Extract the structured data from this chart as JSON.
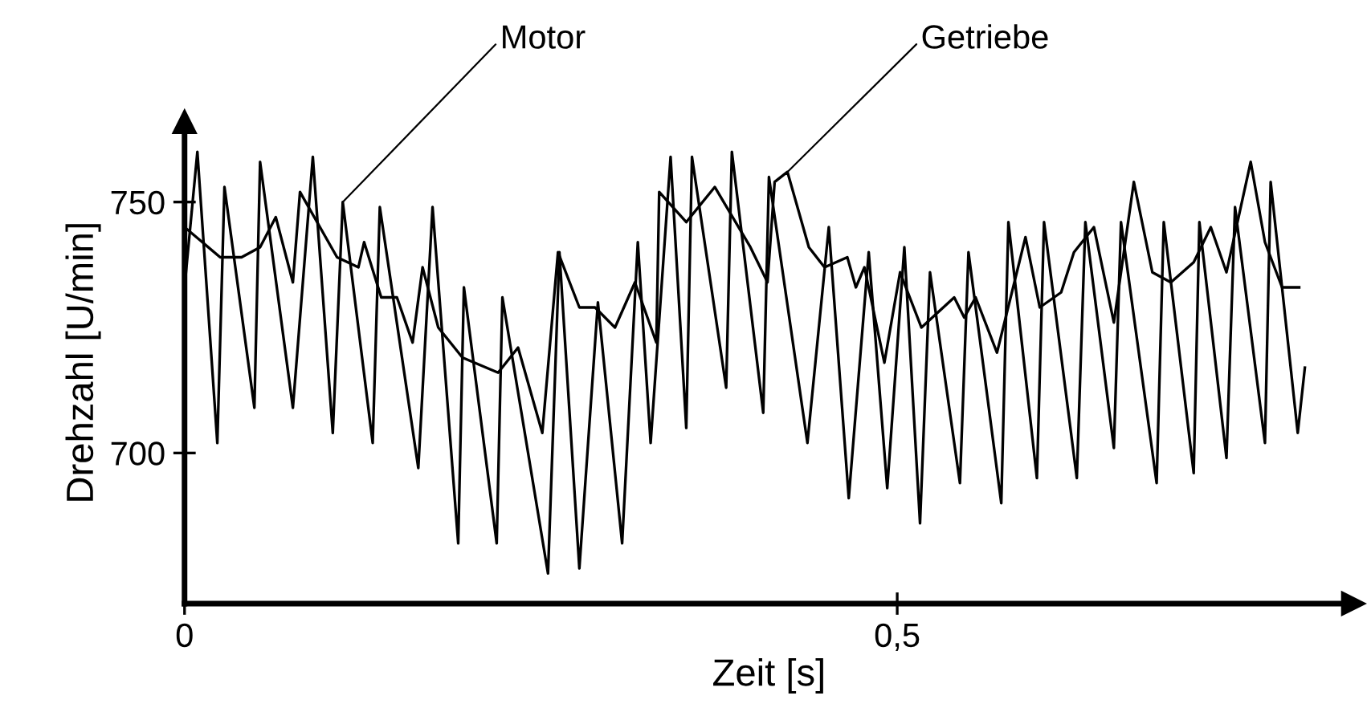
{
  "chart_data": {
    "type": "line",
    "xlabel": "Zeit [s]",
    "ylabel": "Drehzahl [U/min]",
    "xlim": [
      0,
      0.82
    ],
    "ylim": [
      670,
      766
    ],
    "xticks": [
      0,
      {
        "value": 0.5,
        "label": "0,5"
      }
    ],
    "yticks": [
      700,
      750
    ],
    "grid": false,
    "legend": false,
    "marker": "none",
    "line_style": "solid",
    "series": [
      {
        "name": "Motor",
        "color": "#000000",
        "x": [
          0,
          0.009,
          0.023,
          0.028,
          0.049,
          0.053,
          0.076,
          0.09,
          0.104,
          0.111,
          0.132,
          0.137,
          0.164,
          0.174,
          0.192,
          0.196,
          0.219,
          0.223,
          0.255,
          0.263,
          0.277,
          0.29,
          0.307,
          0.318,
          0.327,
          0.341,
          0.352,
          0.356,
          0.38,
          0.384,
          0.406,
          0.41,
          0.437,
          0.452,
          0.466,
          0.48,
          0.493,
          0.505,
          0.516,
          0.523,
          0.544,
          0.55,
          0.573,
          0.578,
          0.598,
          0.603,
          0.626,
          0.632,
          0.652,
          0.657,
          0.682,
          0.687,
          0.708,
          0.712,
          0.731,
          0.737,
          0.758,
          0.762,
          0.781,
          0.786
        ],
        "values": [
          733,
          760,
          702,
          753,
          709,
          758,
          709,
          759,
          704,
          750,
          702,
          749,
          697,
          749,
          682,
          733,
          682,
          731,
          676,
          740,
          677,
          730,
          682,
          742,
          702,
          759,
          705,
          759,
          713,
          760,
          708,
          755,
          702,
          745,
          691,
          740,
          693,
          741,
          686,
          736,
          694,
          740,
          690,
          746,
          695,
          746,
          695,
          746,
          701,
          746,
          694,
          746,
          696,
          746,
          699,
          749,
          702,
          754,
          704,
          717
        ]
      },
      {
        "name": "Getriebe",
        "color": "#000000",
        "x": [
          0,
          0.025,
          0.04,
          0.053,
          0.064,
          0.076,
          0.081,
          0.107,
          0.122,
          0.126,
          0.138,
          0.149,
          0.16,
          0.167,
          0.178,
          0.195,
          0.22,
          0.234,
          0.251,
          0.262,
          0.277,
          0.288,
          0.302,
          0.316,
          0.331,
          0.333,
          0.352,
          0.372,
          0.397,
          0.409,
          0.414,
          0.423,
          0.438,
          0.449,
          0.465,
          0.471,
          0.477,
          0.491,
          0.502,
          0.517,
          0.54,
          0.547,
          0.555,
          0.57,
          0.59,
          0.6,
          0.615,
          0.624,
          0.638,
          0.652,
          0.666,
          0.679,
          0.692,
          0.708,
          0.72,
          0.731,
          0.748,
          0.758,
          0.77,
          0.782
        ],
        "values": [
          745,
          739,
          739,
          741,
          747,
          734,
          752,
          739,
          737,
          742,
          731,
          731,
          722,
          737,
          725,
          719,
          716,
          721,
          704,
          740,
          729,
          729,
          725,
          734,
          722,
          752,
          746,
          753,
          741,
          734,
          754,
          756,
          741,
          737,
          739,
          733,
          737,
          718,
          736,
          725,
          731,
          727,
          731,
          720,
          743,
          729,
          732,
          740,
          745,
          726,
          754,
          736,
          734,
          738,
          745,
          736,
          758,
          742,
          733,
          733
        ]
      }
    ]
  }
}
